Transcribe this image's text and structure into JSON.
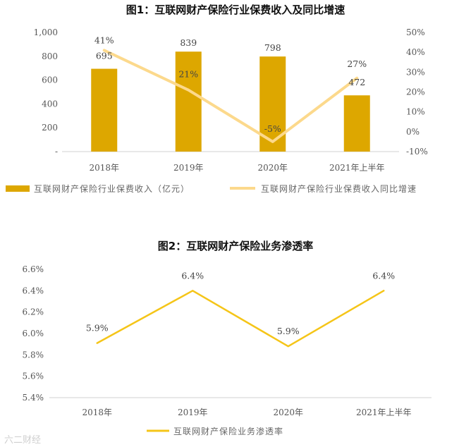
{
  "figure1": {
    "title": "图1：互联网财产保险行业保费收入及同比增速",
    "colors": {
      "bar": "#DDA700",
      "line": "#FCD98C"
    },
    "chart_data": {
      "type": "bar",
      "categories": [
        "2018年",
        "2019年",
        "2020年",
        "2021年上半年"
      ],
      "series": [
        {
          "name": "互联网财产保险行业保费收入（亿元）",
          "type": "bar",
          "axis": "left",
          "values": [
            695,
            839,
            798,
            472
          ],
          "labels": [
            "695",
            "839",
            "798",
            "472"
          ]
        },
        {
          "name": "互联网财产保险行业保费收入同比增速",
          "type": "line",
          "axis": "right",
          "values": [
            41,
            21,
            -5,
            27
          ],
          "labels": [
            "41%",
            "21%",
            "-5%",
            "27%"
          ]
        }
      ],
      "y_left": {
        "ylim": [
          0,
          1000
        ],
        "ticks": [
          "-",
          "200",
          "400",
          "600",
          "800",
          "1,000"
        ]
      },
      "y_right": {
        "ylim": [
          -10,
          50
        ],
        "ticks": [
          "-10%",
          "0%",
          "10%",
          "20%",
          "30%",
          "40%",
          "50%"
        ]
      },
      "legend": "bottom"
    }
  },
  "figure2": {
    "title": "图2：互联网财产保险业务渗透率",
    "colors": {
      "line": "#F5C518"
    },
    "chart_data": {
      "type": "line",
      "categories": [
        "2018年",
        "2019年",
        "2020年",
        "2021年上半年"
      ],
      "series": [
        {
          "name": "互联网财产保险业务渗透率",
          "values": [
            5.9,
            6.4,
            5.9,
            6.4
          ],
          "labels": [
            "5.9%",
            "6.4%",
            "5.9%",
            "6.4%"
          ]
        }
      ],
      "ylim": [
        5.4,
        6.6
      ],
      "ticks": [
        "5.4%",
        "5.6%",
        "5.8%",
        "6.0%",
        "6.2%",
        "6.4%",
        "6.6%"
      ],
      "legend": "bottom"
    }
  },
  "watermark": "六二财经"
}
